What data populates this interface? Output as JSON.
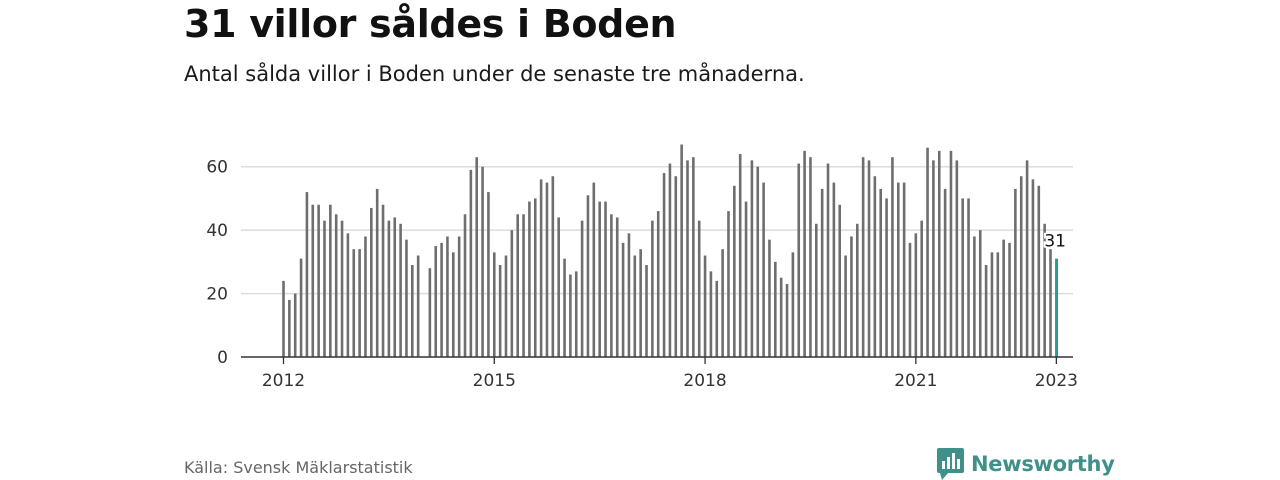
{
  "header": {
    "title": "31 villor såldes i Boden",
    "subtitle": "Antal sålda villor i Boden under de senaste tre månaderna."
  },
  "footer": {
    "source": "Källa: Svensk Mäklarstatistik",
    "brand": "Newsworthy"
  },
  "colors": {
    "bar": "#6e6e6e",
    "highlight": "#2a9d8f",
    "grid": "#dddddd",
    "axis": "#333333",
    "brand": "#3f8f8a"
  },
  "chart_data": {
    "type": "bar",
    "title": "31 villor såldes i Boden",
    "xlabel": "",
    "ylabel": "",
    "ylim": [
      0,
      70
    ],
    "yticks": [
      0,
      20,
      40,
      60
    ],
    "xtick_labels": [
      "2012",
      "2015",
      "2018",
      "2021",
      "2023"
    ],
    "first_period": "2012-01",
    "period_unit": "month",
    "grid": true,
    "highlight_label": "31",
    "series": [
      {
        "name": "Antal sålda villor (senaste tre månaderna)",
        "values": [
          24,
          18,
          20,
          31,
          52,
          48,
          48,
          43,
          48,
          45,
          43,
          39,
          34,
          34,
          38,
          47,
          53,
          48,
          43,
          44,
          42,
          37,
          29,
          32,
          null,
          28,
          35,
          36,
          38,
          33,
          38,
          45,
          59,
          63,
          60,
          52,
          33,
          29,
          32,
          40,
          45,
          45,
          49,
          50,
          56,
          55,
          57,
          44,
          31,
          26,
          27,
          43,
          51,
          55,
          49,
          49,
          45,
          44,
          36,
          39,
          32,
          34,
          29,
          43,
          46,
          58,
          61,
          57,
          67,
          62,
          63,
          43,
          32,
          27,
          24,
          34,
          46,
          54,
          64,
          49,
          62,
          60,
          55,
          37,
          30,
          25,
          23,
          33,
          61,
          65,
          63,
          42,
          53,
          61,
          55,
          48,
          32,
          38,
          42,
          63,
          62,
          57,
          53,
          50,
          63,
          55,
          55,
          36,
          39,
          43,
          66,
          62,
          65,
          53,
          65,
          62,
          50,
          50,
          38,
          40,
          29,
          33,
          33,
          37,
          36,
          53,
          57,
          62,
          56,
          54,
          42,
          34,
          31
        ]
      }
    ]
  }
}
